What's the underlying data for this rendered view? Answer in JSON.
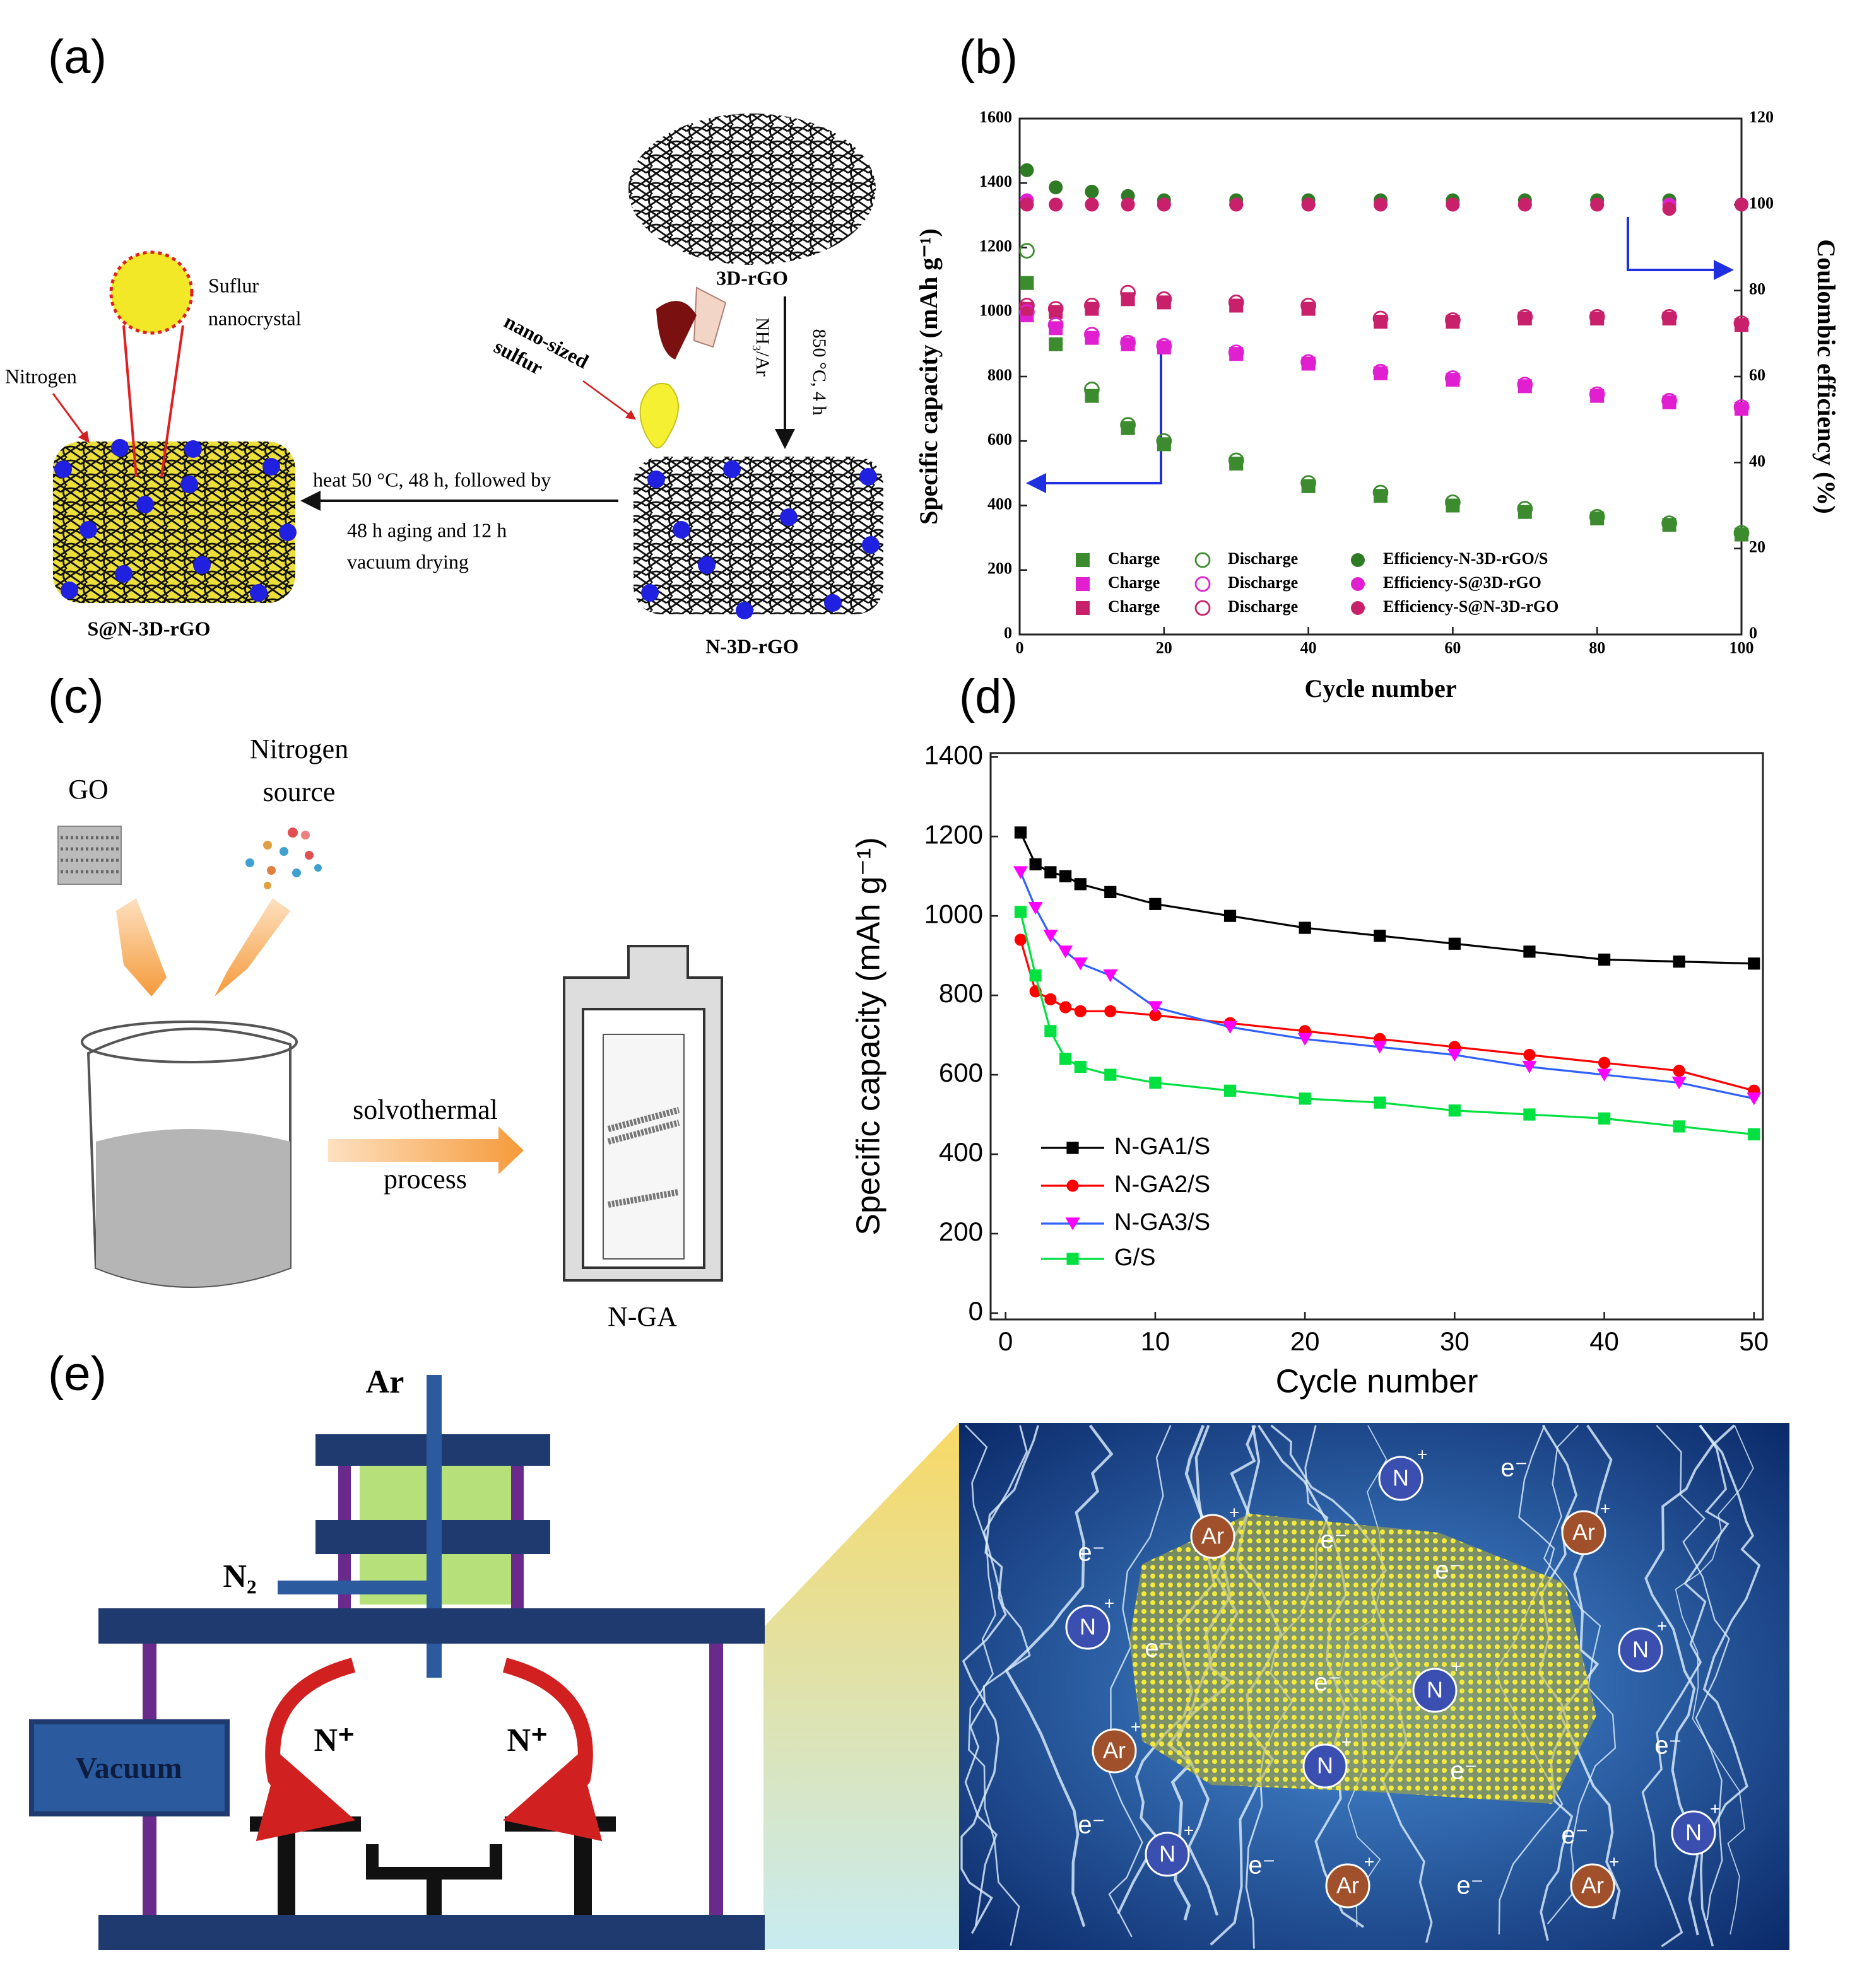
{
  "panels": {
    "a": "(a)",
    "b": "(b)",
    "c": "(c)",
    "d": "(d)",
    "e": "(e)"
  },
  "panel_a": {
    "top_material": "3D-rGO",
    "condition_temp": "850 °C, 4 h",
    "condition_gas": "NH₃/Ar",
    "sulfur_label": [
      "nano-sized",
      "sulfur"
    ],
    "nanocrystal_label": [
      "Suflur",
      "nanocrystal"
    ],
    "nitrogen_label": "Nitrogen",
    "process_steps": [
      "heat 50 °C, 48 h, followed by",
      "48 h aging and 12 h",
      "vacuum drying"
    ],
    "middle_material": "N-3D-rGO",
    "product": "S@N-3D-rGO"
  },
  "panel_c": {
    "precursor_1": "GO",
    "precursor_2": [
      "Nitrogen",
      "source"
    ],
    "process": [
      "solvothermal",
      "process"
    ],
    "product": "N-GA"
  },
  "panel_e": {
    "gas_top": "Ar",
    "gas_side": "N₂",
    "pump": "Vacuum",
    "ion_left": "N⁺",
    "ion_right": "N⁺",
    "ion_n": "N",
    "ion_ar": "Ar",
    "plus": "+",
    "electron": "e⁻"
  },
  "chart_data": [
    {
      "type": "scatter",
      "xlabel": "Cycle number",
      "ylabel": "Specific capacity (mAh g⁻¹)",
      "y2label": "Coulombic efficiency (%)",
      "x": [
        1,
        5,
        10,
        15,
        20,
        30,
        40,
        50,
        60,
        70,
        80,
        90,
        100
      ],
      "xlim": [
        0,
        100
      ],
      "xticks": [
        0,
        20,
        40,
        60,
        80,
        100
      ],
      "ylim": [
        0,
        1600
      ],
      "yticks": [
        0,
        200,
        400,
        600,
        800,
        1000,
        1200,
        1400,
        1600
      ],
      "y2lim": [
        0,
        120
      ],
      "y2ticks": [
        0,
        20,
        40,
        60,
        80,
        100,
        120
      ],
      "series": [
        {
          "name": "Charge",
          "color": "#3d8b2f",
          "marker": "square",
          "values": [
            1090,
            900,
            740,
            640,
            590,
            530,
            460,
            430,
            400,
            380,
            360,
            340,
            310
          ]
        },
        {
          "name": "Charge",
          "color": "#e020d0",
          "marker": "square",
          "values": [
            990,
            950,
            920,
            900,
            890,
            870,
            840,
            810,
            790,
            770,
            740,
            720,
            700
          ]
        },
        {
          "name": "Charge",
          "color": "#c8206a",
          "marker": "square",
          "values": [
            1010,
            1000,
            1010,
            1040,
            1030,
            1020,
            1010,
            970,
            970,
            980,
            980,
            980,
            960
          ]
        },
        {
          "name": "Discharge",
          "color": "#3d8b2f",
          "marker": "circle-open",
          "values": [
            1190,
            960,
            760,
            650,
            600,
            540,
            470,
            440,
            410,
            390,
            365,
            345,
            315
          ]
        },
        {
          "name": "Discharge",
          "color": "#e020d0",
          "marker": "circle-open",
          "values": [
            1000,
            960,
            930,
            905,
            895,
            875,
            845,
            815,
            795,
            775,
            745,
            725,
            705
          ]
        },
        {
          "name": "Discharge",
          "color": "#c8206a",
          "marker": "circle-open",
          "values": [
            1020,
            1010,
            1020,
            1060,
            1040,
            1030,
            1020,
            980,
            975,
            985,
            985,
            985,
            965
          ]
        },
        {
          "name": "Efficiency-N-3D-rGO/S",
          "color": "#2f7a24",
          "marker": "circle",
          "axis": "y2",
          "values": [
            108,
            104,
            103,
            102,
            101,
            101,
            101,
            101,
            101,
            101,
            101,
            101,
            100
          ]
        },
        {
          "name": "Efficiency-S@3D-rGO",
          "color": "#e020d0",
          "marker": "circle",
          "axis": "y2",
          "values": [
            101,
            100,
            100,
            100,
            100,
            100,
            100,
            100,
            100,
            100,
            100,
            100,
            100
          ]
        },
        {
          "name": "Efficiency-S@N-3D-rGO",
          "color": "#c8206a",
          "marker": "circle",
          "axis": "y2",
          "values": [
            100,
            100,
            100,
            100,
            100,
            100,
            100,
            100,
            100,
            100,
            100,
            99,
            100
          ]
        }
      ]
    },
    {
      "type": "line",
      "xlabel": "Cycle number",
      "ylabel": "Specific capacity (mAh g⁻¹)",
      "x": [
        1,
        2,
        3,
        4,
        5,
        7,
        10,
        15,
        20,
        25,
        30,
        35,
        40,
        45,
        50
      ],
      "xlim": [
        -1,
        50.6
      ],
      "xticks": [
        0,
        10,
        20,
        30,
        40,
        50
      ],
      "ylim": [
        -16,
        1410
      ],
      "yticks": [
        0,
        200,
        400,
        600,
        800,
        1000,
        1200,
        1400
      ],
      "series": [
        {
          "name": "N-GA1/S",
          "color": "#000000",
          "line_color": "#000000",
          "marker": "square",
          "values": [
            1210,
            1130,
            1110,
            1100,
            1080,
            1060,
            1030,
            1000,
            970,
            950,
            930,
            910,
            890,
            885,
            880
          ]
        },
        {
          "name": "N-GA2/S",
          "color": "#ff0000",
          "line_color": "#ff0000",
          "marker": "circle",
          "values": [
            940,
            810,
            790,
            770,
            760,
            760,
            750,
            730,
            710,
            690,
            670,
            650,
            630,
            610,
            560
          ]
        },
        {
          "name": "N-GA3/S",
          "color": "#ff00ff",
          "line_color": "#3060ff",
          "marker": "triangle-down",
          "values": [
            1110,
            1020,
            950,
            910,
            880,
            850,
            770,
            720,
            690,
            670,
            650,
            620,
            600,
            580,
            540
          ]
        },
        {
          "name": "G/S",
          "color": "#00e040",
          "line_color": "#00e040",
          "marker": "square",
          "values": [
            1010,
            850,
            710,
            640,
            620,
            600,
            580,
            560,
            540,
            530,
            510,
            500,
            490,
            470,
            450
          ]
        }
      ]
    }
  ]
}
